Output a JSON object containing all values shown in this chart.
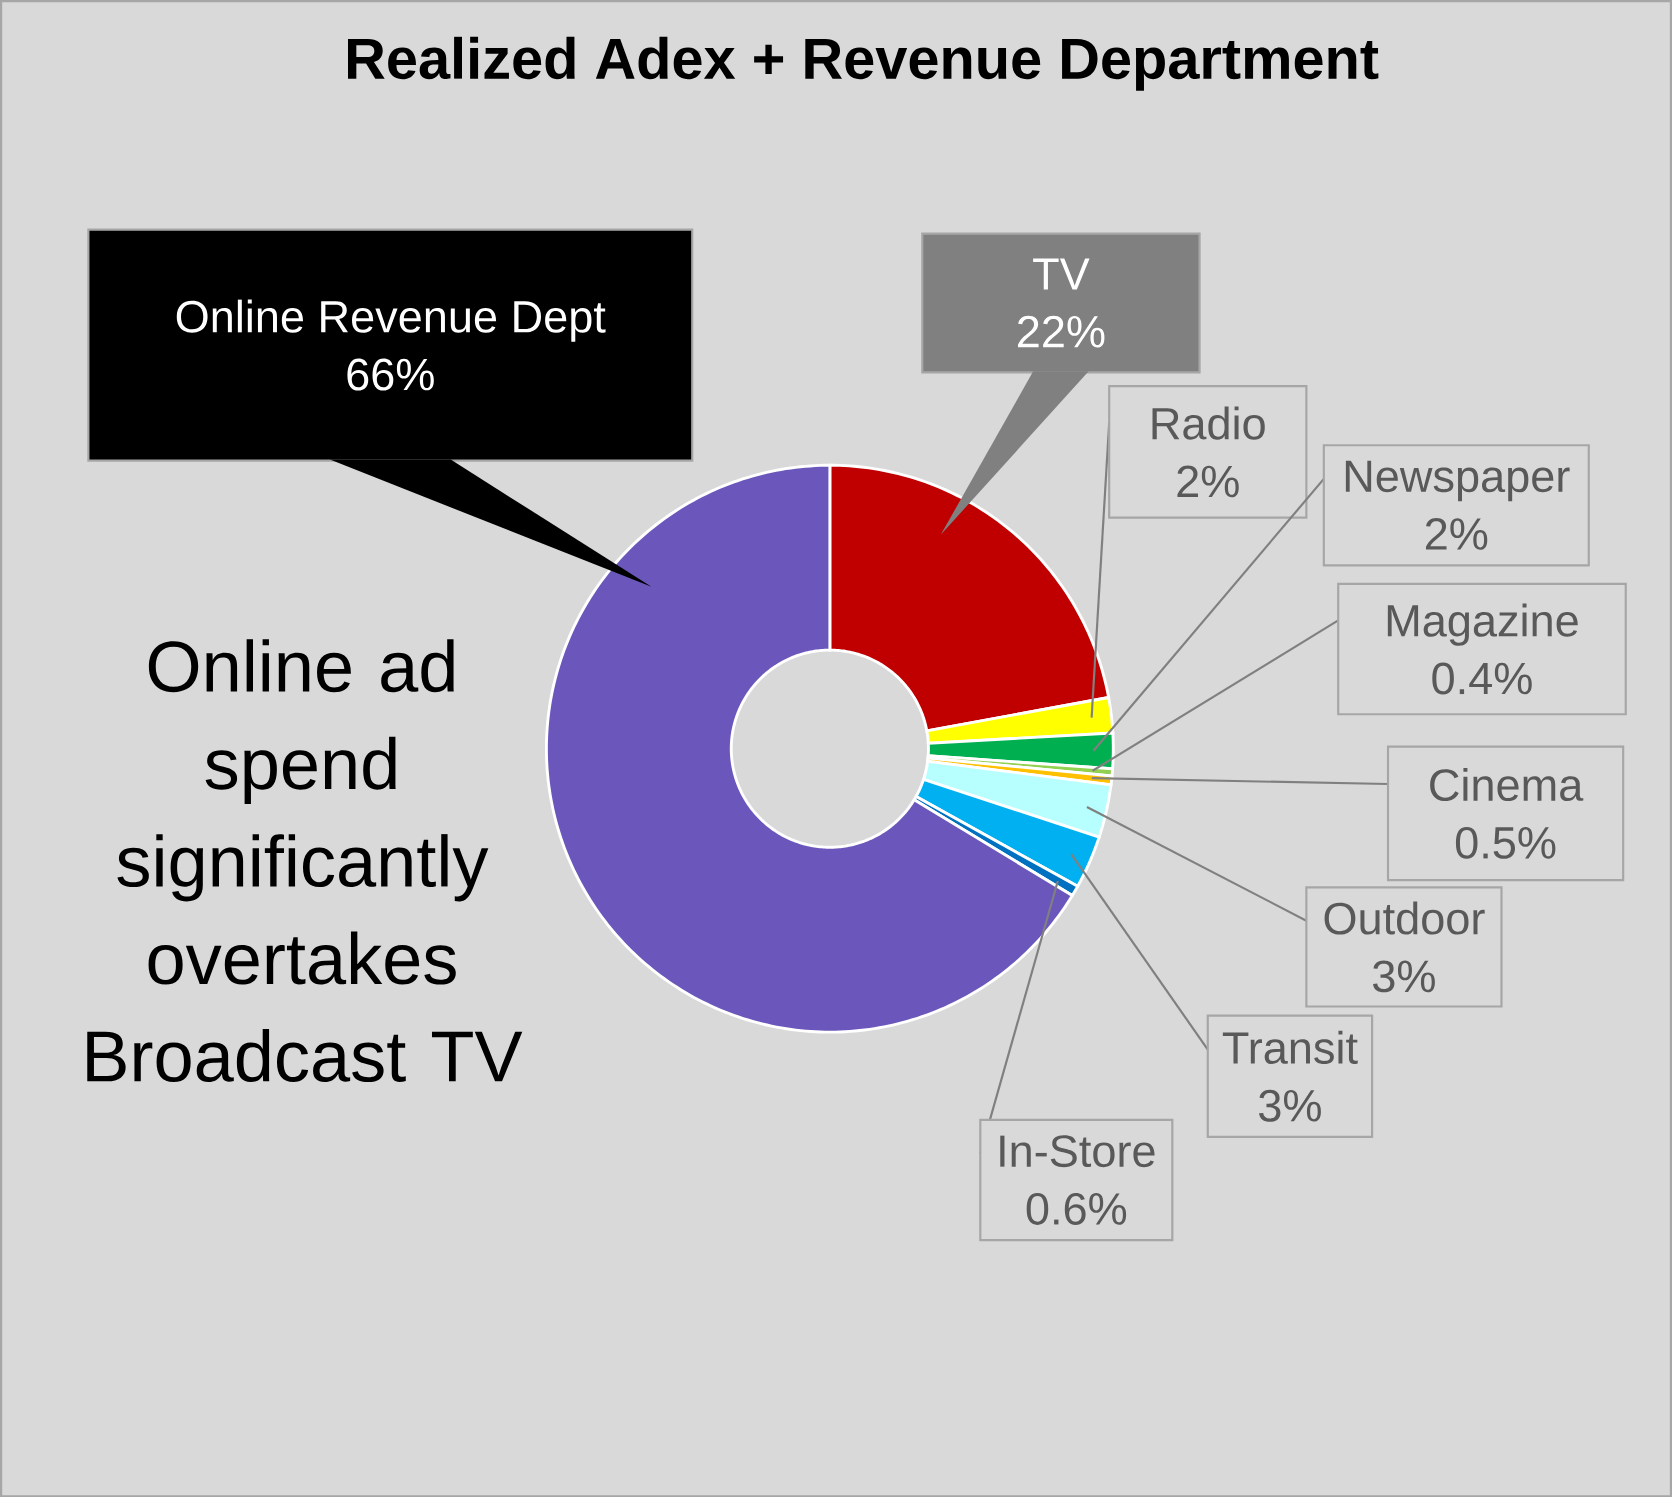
{
  "chart_data": {
    "type": "donut",
    "title": "Realized Adex + Revenue Department",
    "categories": [
      "TV",
      "Radio",
      "Newspaper",
      "Magazine",
      "Cinema",
      "Outdoor",
      "Transit",
      "In-Store",
      "Online Revenue Dept"
    ],
    "values": [
      22,
      2,
      2,
      0.4,
      0.5,
      3,
      3,
      0.6,
      66
    ],
    "colors": [
      "#c00000",
      "#ffff00",
      "#00b050",
      "#92d050",
      "#ffc000",
      "#b7ffff",
      "#00b0f0",
      "#0070c0",
      "#6b57bb"
    ],
    "value_labels": [
      "22%",
      "2%",
      "2%",
      "0.4%",
      "0.5%",
      "3%",
      "3%",
      "0.6%",
      "66%"
    ],
    "annotations": [
      "Online ad spend significantly overtakes Broadcast TV"
    ]
  }
}
